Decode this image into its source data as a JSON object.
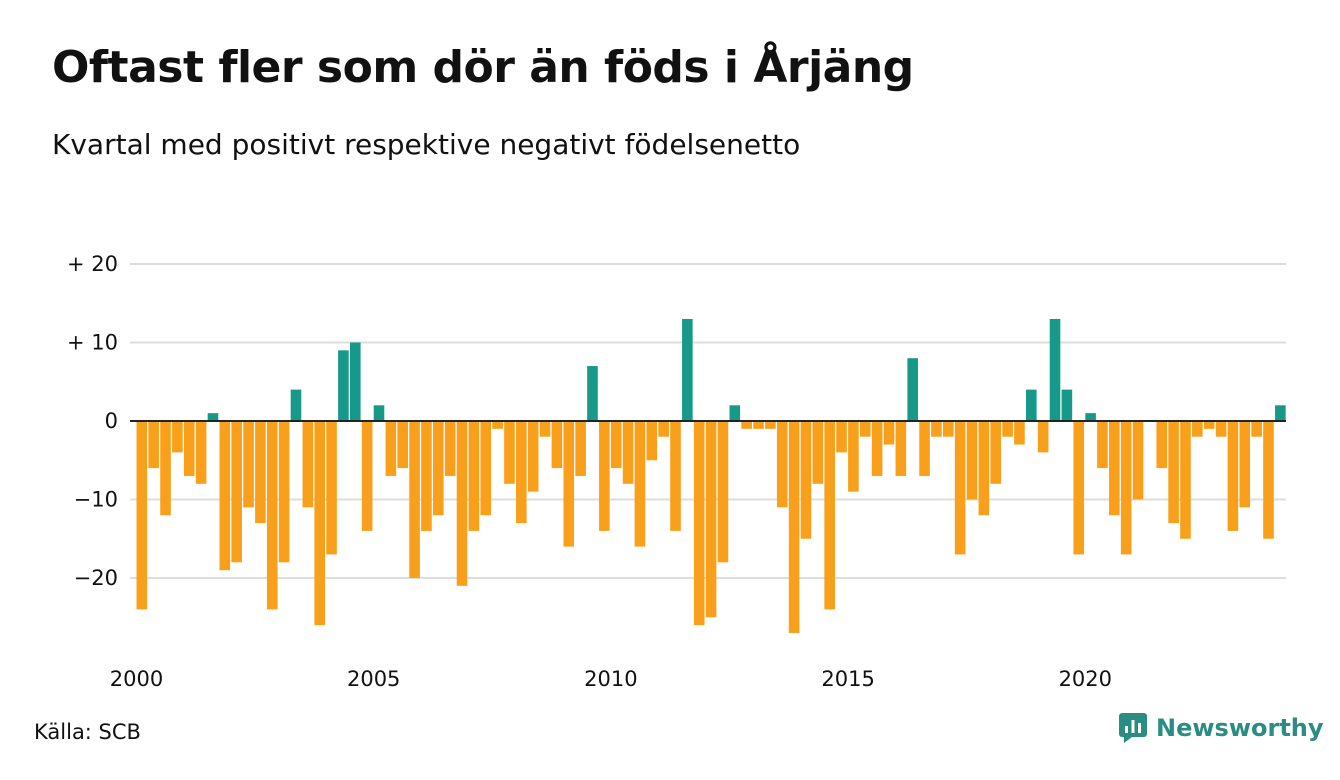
{
  "header": {
    "title": "Oftast fler som dör än föds i Årjäng",
    "subtitle": "Kvartal med positivt respektive negativt födelsenetto"
  },
  "footer": {
    "source": "Källa: SCB",
    "brand": "Newsworthy"
  },
  "colors": {
    "positive": "#17998a",
    "negative": "#f8a01c",
    "grid": "#dddddd",
    "axis": "#222222",
    "brand": "#2a8c82"
  },
  "icons": {
    "brand_logo": "newsworthy-logo-icon"
  },
  "chart_data": {
    "type": "bar",
    "title": "Oftast fler som dör än föds i Årjäng",
    "subtitle": "Kvartal med positivt respektive negativt födelsenetto",
    "xlabel": "",
    "ylabel": "",
    "x_start": 2000,
    "periods_per_year": 4,
    "ylim": [
      -29,
      22
    ],
    "yticks": [
      {
        "value": 20,
        "label": "+ 20"
      },
      {
        "value": 10,
        "label": "+ 10"
      },
      {
        "value": 0,
        "label": "0"
      },
      {
        "value": -10,
        "label": "−10"
      },
      {
        "value": -20,
        "label": "−20"
      }
    ],
    "xticks": [
      {
        "value": 2000,
        "label": "2000"
      },
      {
        "value": 2005,
        "label": "2005"
      },
      {
        "value": 2010,
        "label": "2010"
      },
      {
        "value": 2015,
        "label": "2015"
      },
      {
        "value": 2020,
        "label": "2020"
      }
    ],
    "grid": true,
    "legend": "none",
    "values": [
      -24,
      -6,
      -12,
      -4,
      -7,
      -8,
      1,
      -19,
      -18,
      -11,
      -13,
      -24,
      -18,
      4,
      -11,
      -26,
      -17,
      9,
      10,
      -14,
      2,
      -7,
      -6,
      -20,
      -14,
      -12,
      -7,
      -21,
      -14,
      -12,
      -1,
      -8,
      -13,
      -9,
      -2,
      -6,
      -16,
      -7,
      7,
      -14,
      -6,
      -8,
      -16,
      -5,
      -2,
      -14,
      13,
      -26,
      -25,
      -18,
      2,
      -1,
      -1,
      -1,
      -11,
      -27,
      -15,
      -8,
      -24,
      -4,
      -9,
      -2,
      -7,
      -3,
      -7,
      8,
      -7,
      -2,
      -2,
      -17,
      -10,
      -12,
      -8,
      -2,
      -3,
      4,
      -4,
      13,
      4,
      -17,
      1,
      -6,
      -12,
      -17,
      -10,
      0,
      -6,
      -13,
      -15,
      -2,
      -1,
      -2,
      -14,
      -11,
      -2,
      -15,
      2
    ]
  }
}
